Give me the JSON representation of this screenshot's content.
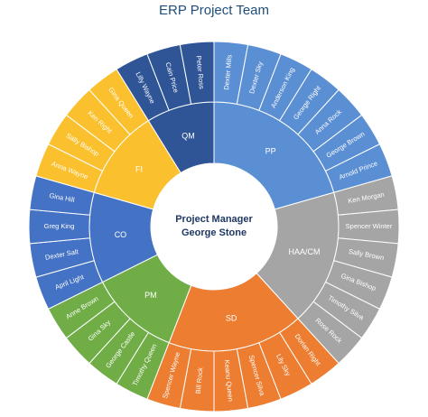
{
  "chart_data": {
    "type": "sunburst",
    "title": "ERP Project Team",
    "center": [
      "Project Manager",
      "George Stone"
    ],
    "groups": [
      {
        "name": "PP",
        "color": "#5b8fd4",
        "members": [
          "Dexter Mills",
          "Dexter Sky",
          "Anderson King",
          "George Right",
          "Anna Rock",
          "George Brown",
          "Arnold Prince"
        ]
      },
      {
        "name": "HAA/CM",
        "color": "#a5a5a5",
        "members": [
          "Ken Morgan",
          "Spencer Winter",
          "Sally Brown",
          "Gina Bishop",
          "Timothy Silva",
          "Rose Rock"
        ]
      },
      {
        "name": "SD",
        "color": "#ed7d31",
        "members": [
          "Dorian Right",
          "Lily Sky",
          "Spencer Silva",
          "Keanu Queen",
          "Bill Rock",
          "Spencer Wayne"
        ]
      },
      {
        "name": "PM",
        "color": "#70ad47",
        "members": [
          "Timothy Queen",
          "George Castle",
          "Gina Sky",
          "Anne Brown"
        ]
      },
      {
        "name": "CO",
        "color": "#4472c4",
        "members": [
          "April Light",
          "Dexter Salt",
          "Greg King",
          "Gina Hill"
        ]
      },
      {
        "name": "FI",
        "color": "#fbc02d",
        "members": [
          "Anna Wayne",
          "Sally Bishop",
          "Ken Right",
          "Gina Queen"
        ]
      },
      {
        "name": "QM",
        "color": "#2f5597",
        "members": [
          "Lilly Wayne",
          "Cain Price",
          "Peter Ross"
        ]
      }
    ]
  }
}
